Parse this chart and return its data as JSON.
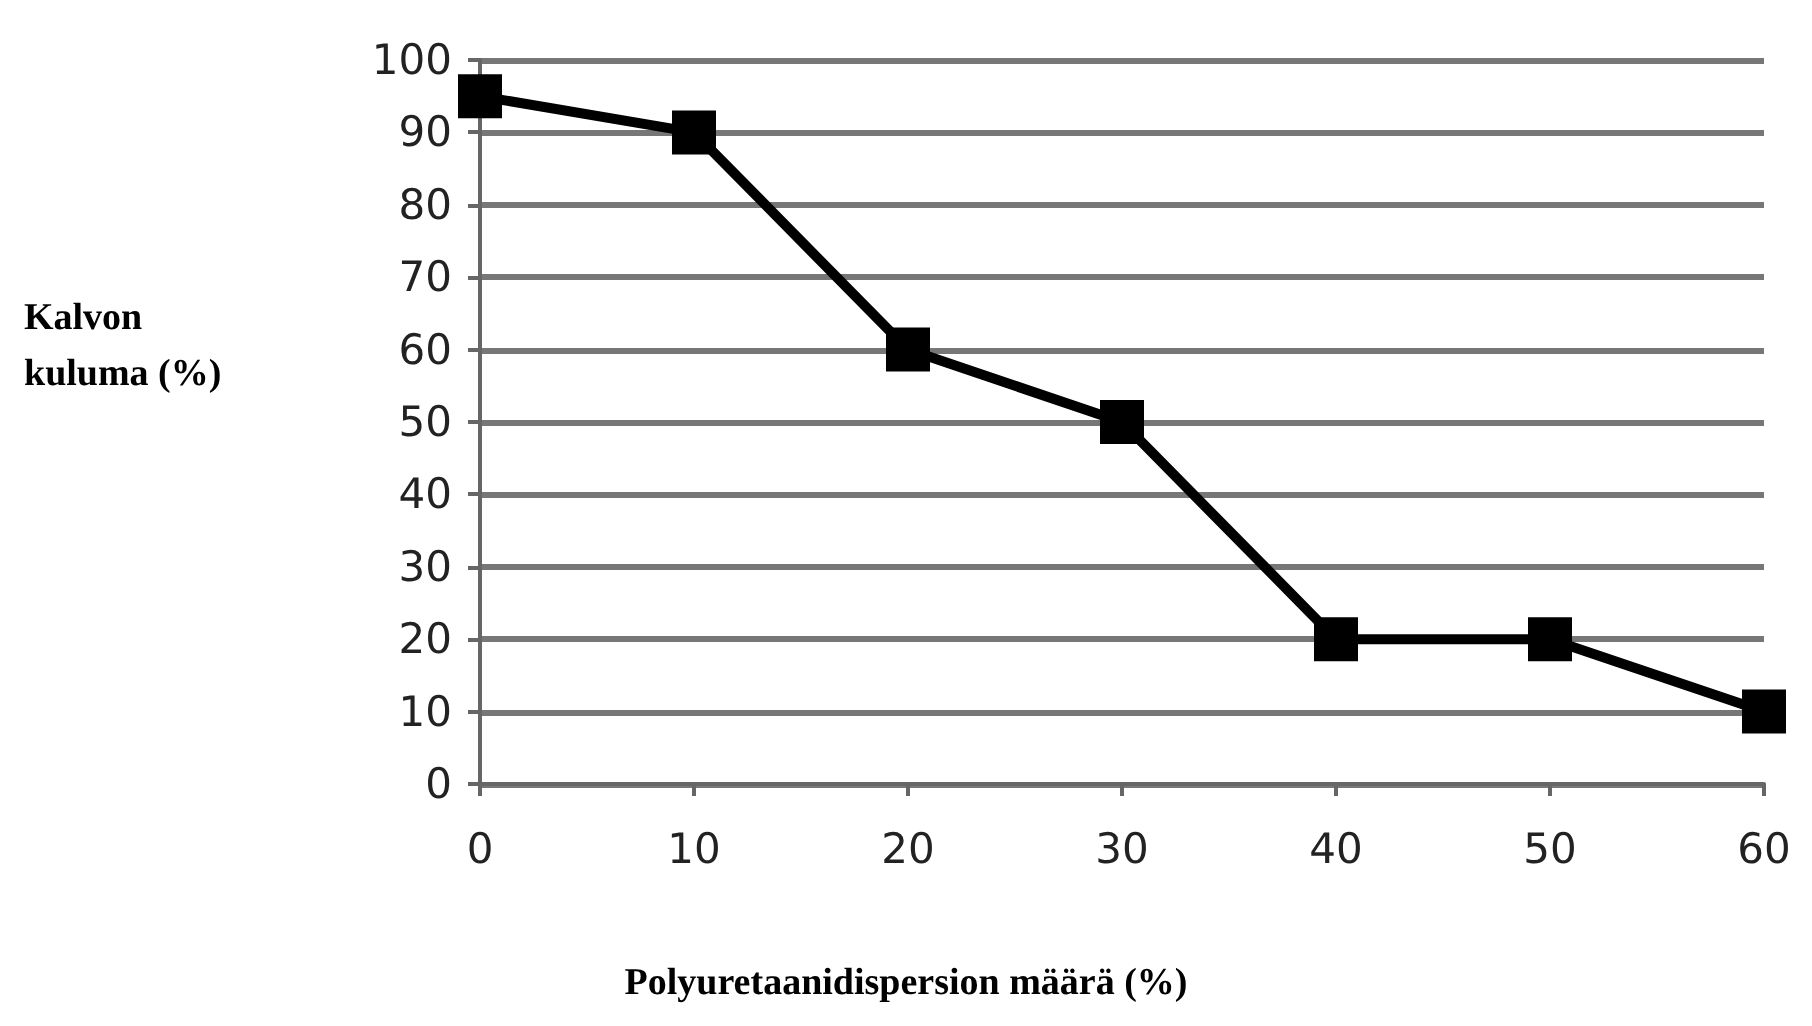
{
  "chart_data": {
    "type": "line",
    "xlabel": "Polyuretaanidispersion määrä (%)",
    "ylabel": "Kalvon kuluma (%)",
    "x": [
      0,
      10,
      20,
      30,
      40,
      50,
      60
    ],
    "series": [
      {
        "color": "#000000",
        "values": [
          95,
          90,
          60,
          50,
          20,
          20,
          10
        ]
      }
    ],
    "xlim": [
      0,
      60
    ],
    "xticks": [
      0,
      10,
      20,
      30,
      40,
      50,
      60
    ],
    "ylim": [
      0,
      100
    ],
    "yticks": [
      0,
      10,
      20,
      30,
      40,
      50,
      60,
      70,
      80,
      90,
      100
    ],
    "grid": "y",
    "marker": "square",
    "line_style": "solid"
  }
}
